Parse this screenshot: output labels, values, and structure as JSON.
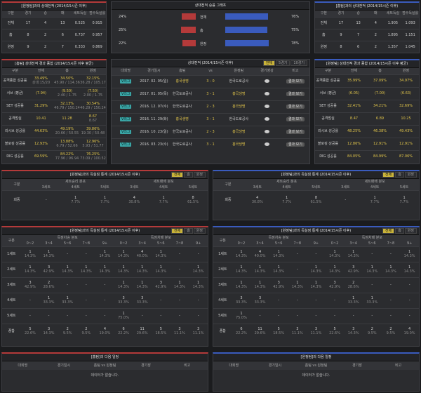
{
  "colors": {
    "red": "#b43a3a",
    "blue": "#3a5bbd",
    "yellow": "#e0c44a",
    "teal": "#3aa6a6"
  },
  "tl": {
    "title": "[원정팀]과의 상대전적 (2014/15시즌 이후)",
    "headers": [
      "구분",
      "경기",
      "승",
      "패",
      "세트득실",
      "점수득실률"
    ],
    "rows": [
      [
        "전체",
        "17",
        "4",
        "13",
        "0.525",
        "0.915"
      ],
      [
        "홈",
        "8",
        "2",
        "6",
        "0.737",
        "0.957"
      ],
      [
        "원정",
        "9",
        "2",
        "7",
        "0.333",
        "0.869"
      ]
    ]
  },
  "tm": {
    "title": "상대전적 승률 그래프",
    "rows": [
      {
        "left": "24%",
        "label": "전체",
        "right": "76%",
        "lv": 24,
        "rv": 76
      },
      {
        "left": "25%",
        "label": "홈",
        "right": "75%",
        "lv": 25,
        "rv": 75
      },
      {
        "left": "22%",
        "label": "원정",
        "right": "78%",
        "lv": 22,
        "rv": 78
      }
    ]
  },
  "tr": {
    "title": "[홈팀]과의 상대전적 (2014/15시즌 이후)",
    "headers": [
      "구분",
      "경기",
      "승",
      "패",
      "세트득실",
      "점수득실률"
    ],
    "rows": [
      [
        "전체",
        "17",
        "13",
        "4",
        "1.905",
        "1.093"
      ],
      [
        "홈",
        "9",
        "7",
        "2",
        "1.895",
        "1.151"
      ],
      [
        "원정",
        "8",
        "6",
        "2",
        "1.357",
        "1.045"
      ]
    ]
  },
  "ml": {
    "title": "[홈팀] 상대전적 경과 종합 (2014/15시즌 이후 평균)",
    "headers": [
      "구분",
      "전체",
      "홈",
      "원정"
    ],
    "rows": [
      [
        "공격종합 성공률",
        "33.49%",
        "34.50%",
        "32.15%"
      ],
      [
        "서브 (평균)",
        "(7.94)",
        "(9.50)",
        "(7.50)"
      ],
      [
        "SET 성공률",
        "31.29%",
        "32.13%",
        "30.54%"
      ],
      [
        "공격범실",
        "10.41",
        "11.28",
        "8.67"
      ],
      [
        "리시브 성공률",
        "44.63%",
        "49.19%",
        "39.86%"
      ],
      [
        "블로킹 성공률",
        "12.93%",
        "13.88%",
        "12.96%"
      ],
      [
        "DIG 성공률",
        "69.59%",
        "84.22%",
        "76.25%"
      ]
    ],
    "subs": [
      [
        "상대:15/20",
        "45.90 / 114.36",
        "36.28 / 105.17"
      ],
      [
        "",
        "2.40 / 1.75",
        "2.00 / 1.75"
      ],
      [
        "",
        "46.79 / 150.24",
        "46.29 / 150.24"
      ],
      [
        "",
        "",
        "8.67"
      ],
      [
        "",
        "20.66 / 50.55",
        "19.30 / 50.48"
      ],
      [
        "",
        "6.79 / 52.66",
        "5.93 / 51.77"
      ],
      [
        "",
        "77.96 / 96.94",
        "73.09 / 100.52"
      ]
    ]
  },
  "mm": {
    "title": "상대전적 (2014/15시즌 이후)",
    "tabs": [
      "전체",
      "5경기",
      "10경기"
    ],
    "headers": [
      "대회명",
      "경기일시",
      "홈팀",
      "vs",
      "원정팀",
      "경기영상",
      "비고"
    ],
    "rows": [
      [
        "V리그",
        "2017. 02. 05(일)",
        "흥국생명",
        "3 - 0",
        "한국도로공사",
        "결과 보기"
      ],
      [
        "V리그",
        "2017. 01. 05(목)",
        "한국도로공사",
        "3 - 1",
        "흥국생명",
        "결과 보기"
      ],
      [
        "V리그",
        "2016. 12. 07(수)",
        "한국도로공사",
        "2 - 3",
        "흥국생명",
        "결과 보기"
      ],
      [
        "V리그",
        "2016. 11. 29(화)",
        "흥국생명",
        "3 - 1",
        "한국도로공사",
        "결과 보기"
      ],
      [
        "V리그",
        "2016. 10. 23(일)",
        "한국도로공사",
        "2 - 3",
        "흥국생명",
        "결과 보기"
      ],
      [
        "V리그",
        "2016. 03. 23(수)",
        "한국도로공사",
        "3 - 1",
        "흥국생명",
        "결과 보기"
      ]
    ]
  },
  "mr": {
    "title": "[원정팀] 상대전적 경과 종합 (2014/15시즌 이후 평균)",
    "headers": [
      "구분",
      "전체",
      "홈",
      "원정"
    ],
    "rows": [
      [
        "공격종합 성공률",
        "35.99%",
        "37.09%",
        "34.97%"
      ],
      [
        "서브 (평균)",
        "(6.05)",
        "(7.00)",
        "(6.63)"
      ],
      [
        "SET 성공률",
        "32.41%",
        "34.21%",
        "32.69%"
      ],
      [
        "공격범실",
        "8.47",
        "6.89",
        "10.25"
      ],
      [
        "리시브 성공률",
        "48.25%",
        "46.38%",
        "49.43%"
      ],
      [
        "블로킹 성공률",
        "12.86%",
        "12.91%",
        "12.91%"
      ],
      [
        "DIG 성공률",
        "84.05%",
        "84.99%",
        "87.06%"
      ]
    ]
  },
  "s1l": {
    "title": "[원정팀]과의 득실점 통계 (2014/15시즌 이후)",
    "tabs": [
      "전체",
      "홈",
      "원정"
    ],
    "g1": "세트승리 분포",
    "g2": "세트패배 분포",
    "cols": [
      "3세트",
      "4세트",
      "5세트",
      "3세트",
      "4세트",
      "5세트"
    ],
    "rowlabel": "구분",
    "row": "회중",
    "vals": [
      "-",
      "1",
      "1",
      "4",
      "1",
      "8"
    ],
    "pcts": [
      "",
      "7.7%",
      "7.7%",
      "30.8%",
      "7.7%",
      "61.5%"
    ]
  },
  "s1r": {
    "title": "[원정팀]과의 득실점 통계 (2014/15시즌 이후)",
    "tabs": [
      "전체",
      "홈",
      "원정"
    ],
    "g1": "세트승리 분포",
    "g2": "세트패배 분포",
    "cols": [
      "3세트",
      "4세트",
      "5세트",
      "3세트",
      "4세트",
      "5세트"
    ],
    "rowlabel": "구분",
    "row": "회중",
    "vals": [
      "4",
      "1",
      "8",
      "-",
      "1",
      "1"
    ],
    "pcts": [
      "30.8%",
      "7.7%",
      "61.5%",
      "",
      "7.7%",
      "7.7%"
    ]
  },
  "s2l": {
    "title": "[원정팀]과의 득실점 통계 (2014/15시즌 이후)",
    "tabs": [
      "전체",
      "홈",
      "원정"
    ],
    "g1": "득점차승 분포",
    "g2": "득점차패 분포",
    "cols": [
      "0~2",
      "3~4",
      "5~6",
      "7~8",
      "9+",
      "0~2",
      "3~4",
      "5~6",
      "7~8",
      "9+"
    ],
    "rowlabel": "구분",
    "rows": [
      {
        "label": "1세트",
        "v": [
          "1",
          "1",
          "-",
          "-",
          "1",
          "1",
          "4",
          "1",
          "-",
          "-"
        ],
        "p": [
          "14.3%",
          "14.3%",
          "",
          "",
          "14.3%",
          "14.3%",
          "40.0%",
          "14.3%",
          "",
          ""
        ]
      },
      {
        "label": "2세트",
        "v": [
          "1",
          "3",
          "1",
          "1",
          "1",
          "1",
          "1",
          "1",
          "-",
          "1"
        ],
        "p": [
          "14.3%",
          "42.9%",
          "14.3%",
          "14.3%",
          "14.3%",
          "14.3%",
          "14.3%",
          "14.3%",
          "",
          "14.3%"
        ]
      },
      {
        "label": "3세트",
        "v": [
          "3",
          "2",
          "-",
          "-",
          "-",
          "1",
          "1",
          "3",
          "1",
          "1"
        ],
        "p": [
          "42.9%",
          "28.6%",
          "",
          "",
          "",
          "14.3%",
          "14.3%",
          "42.9%",
          "14.3%",
          "14.3%"
        ]
      },
      {
        "label": "4세트",
        "v": [
          "-",
          "1",
          "1",
          "-",
          "-",
          "3",
          "3",
          "-",
          "-",
          "-"
        ],
        "p": [
          "",
          "33.3%",
          "33.3%",
          "",
          "",
          "33.3%",
          "33.3%",
          "",
          "",
          ""
        ]
      },
      {
        "label": "5세트",
        "v": [
          "-",
          "-",
          "-",
          "-",
          "-",
          "1",
          "-",
          "-",
          "-",
          "-"
        ],
        "p": [
          "",
          "",
          "",
          "",
          "",
          "75.0%",
          "",
          "",
          "",
          ""
        ]
      },
      {
        "label": "종합",
        "v": [
          "5",
          "3",
          "2",
          "2",
          "4",
          "6",
          "11",
          "5",
          "3",
          "3"
        ],
        "p": [
          "22.6%",
          "14.3%",
          "9.5%",
          "9.5%",
          "19.0%",
          "22.2%",
          "29.6%",
          "18.5%",
          "11.1%",
          "11.1%"
        ]
      }
    ]
  },
  "s2r": {
    "title": "[원정팀]과의 득실점 통계 (2014/15시즌 이후)",
    "tabs": [
      "전체",
      "홈",
      "원정"
    ],
    "g1": "득점차승 분포",
    "g2": "득점차패 분포",
    "cols": [
      "0~2",
      "3~4",
      "5~6",
      "7~8",
      "9+",
      "0~2",
      "3~4",
      "5~6",
      "7~8",
      "9+"
    ],
    "rowlabel": "구분",
    "rows": [
      {
        "label": "1세트",
        "v": [
          "1",
          "4",
          "1",
          "-",
          "-",
          "1",
          "1",
          "-",
          "-",
          "1"
        ],
        "p": [
          "14.3%",
          "40.0%",
          "14.3%",
          "",
          "",
          "14.3%",
          "14.3%",
          "",
          "",
          "14.3%"
        ]
      },
      {
        "label": "2세트",
        "v": [
          "1",
          "1",
          "1",
          "-",
          "1",
          "1",
          "3",
          "1",
          "1",
          "1"
        ],
        "p": [
          "14.3%",
          "14.3%",
          "14.3%",
          "",
          "14.3%",
          "14.3%",
          "42.9%",
          "14.3%",
          "14.3%",
          "14.3%"
        ]
      },
      {
        "label": "3세트",
        "v": [
          "1",
          "1",
          "3",
          "1",
          "1",
          "3",
          "2",
          "-",
          "-",
          "-"
        ],
        "p": [
          "14.3%",
          "14.3%",
          "42.9%",
          "14.3%",
          "14.3%",
          "42.9%",
          "28.6%",
          "",
          "",
          ""
        ]
      },
      {
        "label": "4세트",
        "v": [
          "3",
          "3",
          "-",
          "-",
          "-",
          "-",
          "1",
          "1",
          "-",
          "-"
        ],
        "p": [
          "33.3%",
          "33.3%",
          "",
          "",
          "",
          "",
          "33.3%",
          "33.3%",
          "",
          ""
        ]
      },
      {
        "label": "5세트",
        "v": [
          "1",
          "-",
          "-",
          "-",
          "-",
          "-",
          "-",
          "-",
          "-",
          "-"
        ],
        "p": [
          "75.0%",
          "",
          "",
          "",
          "",
          "",
          "",
          "",
          "",
          ""
        ]
      },
      {
        "label": "종합",
        "v": [
          "6",
          "11",
          "5",
          "3",
          "3",
          "5",
          "3",
          "2",
          "2",
          "4"
        ],
        "p": [
          "22.2%",
          "29.6%",
          "18.5%",
          "11.1%",
          "11.1%",
          "22.6%",
          "14.3%",
          "9.5%",
          "9.5%",
          "19.0%"
        ]
      }
    ]
  },
  "bl": {
    "title": "[홈팀]의 다음 일정",
    "headers": [
      "대회명",
      "경기일시",
      "홈팀 vs 원정팀",
      "경기장",
      "비고"
    ],
    "empty": "데이터가 없습니다."
  },
  "br": {
    "title": "[원정팀]의 다음 일정",
    "headers": [
      "대회명",
      "경기일시",
      "홈팀 vs 원정팀",
      "경기장",
      "비고"
    ],
    "empty": "데이터가 없습니다."
  }
}
